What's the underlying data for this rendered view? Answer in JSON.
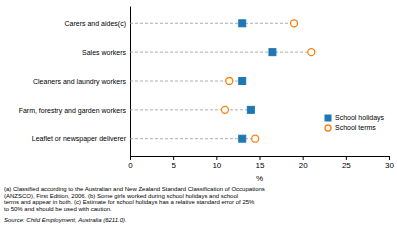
{
  "chart_data": {
    "type": "dot",
    "orientation": "horizontal",
    "categories": [
      "Leaflet or newspaper deliverer",
      "Farm, forestry and garden workers",
      "Cleaners and laundry workers",
      "Sales workers",
      "Carers and aides(c)"
    ],
    "series": [
      {
        "name": "School holidays",
        "marker": "square",
        "values": [
          13.0,
          14.0,
          13.0,
          16.5,
          13.0
        ]
      },
      {
        "name": "School terms",
        "marker": "circle",
        "values": [
          14.5,
          11.0,
          11.5,
          21.0,
          19.0
        ]
      }
    ],
    "xlim": [
      0,
      30
    ],
    "xticks": [
      0,
      5,
      10,
      15,
      20,
      25,
      30
    ],
    "xlabel": "%",
    "legend": "right",
    "grid": false,
    "footnotes": [
      "(a) Classified according to the Australian and New Zealand Standard Classification of Occupations",
      "(ANZSCO), First Edition, 2006. (b) Some girls worked during school holidays and school",
      "terms and appear in both. (c) Estimate for school holidays has a relative standard error of 25%",
      "to 50% and should be used with caution."
    ],
    "source": "Source: Child Employment, Australia (6211.0)."
  }
}
